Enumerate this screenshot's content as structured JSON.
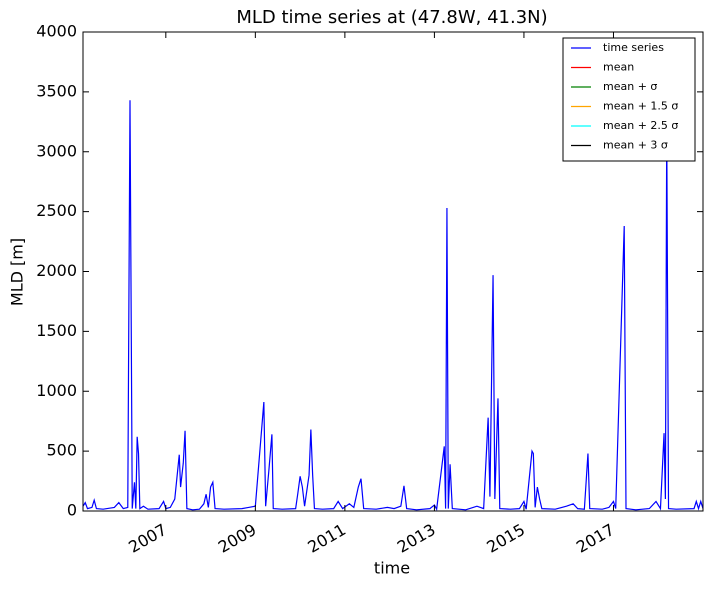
{
  "chart_data": {
    "type": "line",
    "title": "MLD time series at (47.8W, 41.3N)",
    "x_label": "time",
    "y_label": "MLD [m]",
    "x": [
      2005.15,
      2005.2,
      2005.25,
      2005.35,
      2005.4,
      2005.45,
      2005.6,
      2005.85,
      2005.95,
      2006.05,
      2006.15,
      2006.2,
      2006.25,
      2006.3,
      2006.33,
      2006.36,
      2006.39,
      2006.42,
      2006.5,
      2006.6,
      2006.85,
      2006.95,
      2007.0,
      2007.1,
      2007.2,
      2007.3,
      2007.33,
      2007.36,
      2007.39,
      2007.43,
      2007.47,
      2007.6,
      2007.75,
      2007.85,
      2007.9,
      2007.95,
      2008.0,
      2008.05,
      2008.1,
      2008.3,
      2008.7,
      2008.85,
      2009.0,
      2009.19,
      2009.23,
      2009.3,
      2009.37,
      2009.4,
      2009.6,
      2009.9,
      2009.95,
      2010.0,
      2010.05,
      2010.1,
      2010.2,
      2010.24,
      2010.28,
      2010.32,
      2010.5,
      2010.75,
      2010.85,
      2010.95,
      2011.1,
      2011.2,
      2011.3,
      2011.36,
      2011.42,
      2011.7,
      2011.95,
      2012.1,
      2012.25,
      2012.32,
      2012.38,
      2012.6,
      2012.9,
      2013.0,
      2013.05,
      2013.22,
      2013.25,
      2013.28,
      2013.31,
      2013.35,
      2013.4,
      2013.7,
      2013.95,
      2014.1,
      2014.2,
      2014.24,
      2014.31,
      2014.35,
      2014.42,
      2014.46,
      2014.7,
      2014.9,
      2015.0,
      2015.05,
      2015.18,
      2015.21,
      2015.25,
      2015.3,
      2015.35,
      2015.4,
      2015.7,
      2015.95,
      2016.1,
      2016.2,
      2016.35,
      2016.43,
      2016.47,
      2016.75,
      2016.9,
      2017.0,
      2017.05,
      2017.24,
      2017.28,
      2017.5,
      2017.8,
      2017.95,
      2018.05,
      2018.13,
      2018.16,
      2018.19,
      2018.23,
      2018.4,
      2018.8,
      2018.85,
      2018.9,
      2018.95,
      2019.0
    ],
    "series": [
      {
        "name": "time series",
        "color": "#0000ff",
        "values": [
          40,
          70,
          20,
          30,
          90,
          20,
          15,
          30,
          70,
          20,
          30,
          3430,
          20,
          240,
          20,
          620,
          480,
          20,
          40,
          15,
          20,
          80,
          20,
          30,
          100,
          470,
          200,
          300,
          400,
          670,
          20,
          10,
          15,
          60,
          140,
          30,
          200,
          240,
          20,
          15,
          20,
          30,
          40,
          910,
          40,
          330,
          640,
          20,
          15,
          20,
          150,
          290,
          200,
          40,
          300,
          680,
          300,
          20,
          15,
          20,
          80,
          20,
          60,
          30,
          200,
          270,
          20,
          15,
          30,
          20,
          40,
          210,
          20,
          10,
          20,
          50,
          15,
          540,
          20,
          2530,
          20,
          390,
          20,
          10,
          40,
          20,
          780,
          120,
          1970,
          100,
          940,
          20,
          15,
          20,
          80,
          15,
          500,
          480,
          30,
          200,
          100,
          20,
          15,
          40,
          60,
          20,
          15,
          480,
          20,
          15,
          30,
          80,
          20,
          2380,
          20,
          10,
          20,
          80,
          20,
          650,
          100,
          3200,
          20,
          15,
          20,
          80,
          20,
          80,
          20
        ]
      },
      {
        "name": "mean",
        "color": "#ff0000"
      },
      {
        "name": "mean + σ",
        "color": "#008000"
      },
      {
        "name": "mean + 1.5 σ",
        "color": "#ffa500"
      },
      {
        "name": "mean + 2.5 σ",
        "color": "#00ffff"
      },
      {
        "name": "mean + 3 σ",
        "color": "#000000"
      }
    ],
    "xlim": [
      2005.15,
      2019.0
    ],
    "xticks": [
      2007,
      2009,
      2011,
      2013,
      2015,
      2017
    ],
    "ylim": [
      0,
      4000
    ],
    "yticks": [
      0,
      500,
      1000,
      1500,
      2000,
      2500,
      3000,
      3500,
      4000
    ],
    "grid": false,
    "legend": "upper right"
  }
}
